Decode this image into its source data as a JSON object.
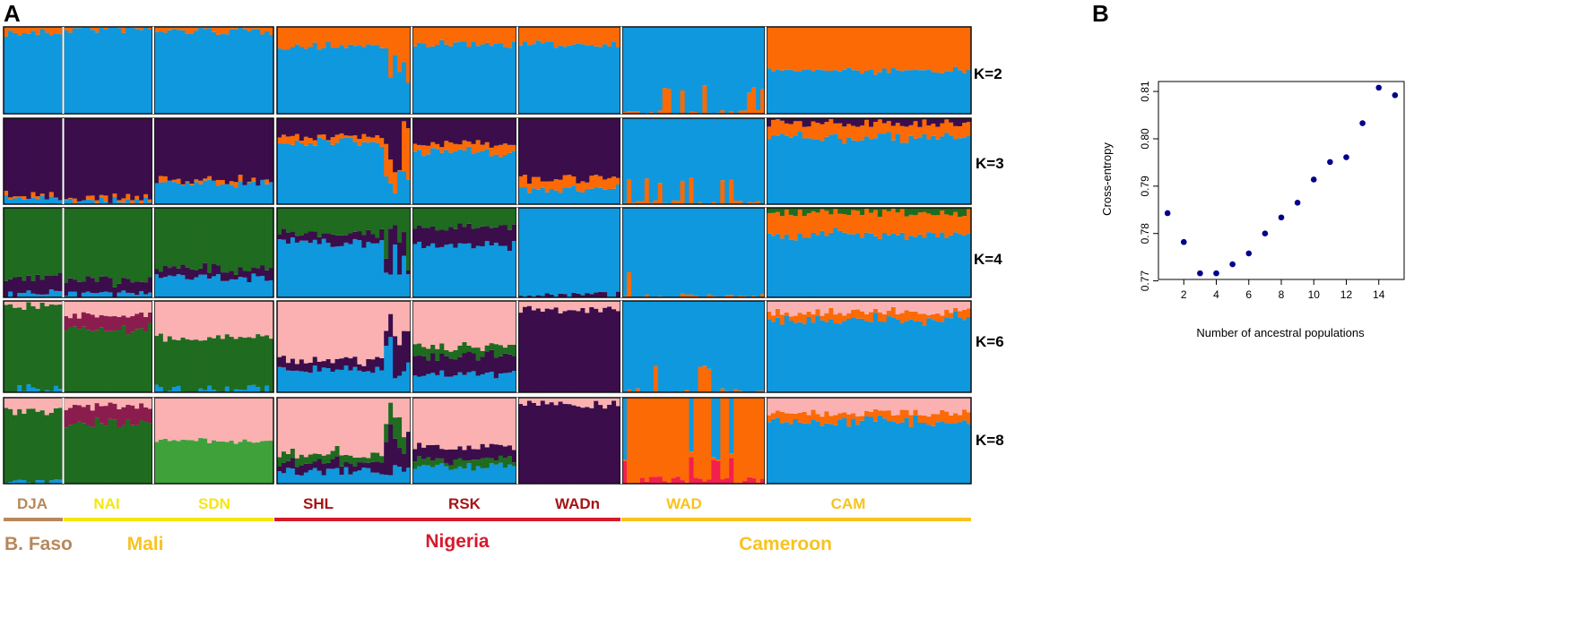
{
  "panel_a": {
    "label": "A",
    "k_labels": [
      "K=2",
      "K=3",
      "K=4",
      "K=6",
      "K=8"
    ],
    "populations": [
      "DJA",
      "NAI",
      "SDN",
      "SHL",
      "RSK",
      "WADn",
      "WAD",
      "CAM"
    ],
    "countries": [
      "B. Faso",
      "Mali",
      "Nigeria",
      "Cameroon"
    ],
    "colors": {
      "blue": "#0f98dd",
      "orange": "#fb6a05",
      "purple": "#3b0d4b",
      "darkgreen": "#1f6b1f",
      "pink": "#fbb1b1",
      "maroon": "#8b1d4e",
      "lightgreen": "#3fa13a",
      "red": "#f2204d",
      "brown_label": "#b9875b",
      "yellow_label": "#f5e60e",
      "red_label": "#d61a2b",
      "darkred_label": "#a51417",
      "gold_label": "#f8c31e"
    }
  },
  "panel_b": {
    "label": "B",
    "chart_data": {
      "type": "scatter",
      "xlabel": "Number of ancestral populations",
      "ylabel": "Cross-entropy",
      "x": [
        1,
        2,
        3,
        4,
        5,
        6,
        7,
        8,
        9,
        10,
        11,
        12,
        13,
        14,
        15
      ],
      "y": [
        0.7843,
        0.7782,
        0.7716,
        0.7716,
        0.7735,
        0.7758,
        0.78,
        0.7834,
        0.7865,
        0.7914,
        0.7951,
        0.7961,
        0.8033,
        0.8108,
        0.8092
      ],
      "xticks": [
        2,
        4,
        6,
        8,
        10,
        12,
        14
      ],
      "yticks": [
        0.77,
        0.78,
        0.79,
        0.8,
        0.81
      ],
      "ytick_labels": [
        "0.77",
        "0.78",
        "0.79",
        "0.80",
        "0.81"
      ],
      "xlim": [
        0.44,
        15.56
      ],
      "ylim": [
        0.7703,
        0.8121
      ],
      "point_color": "#00008b"
    }
  }
}
